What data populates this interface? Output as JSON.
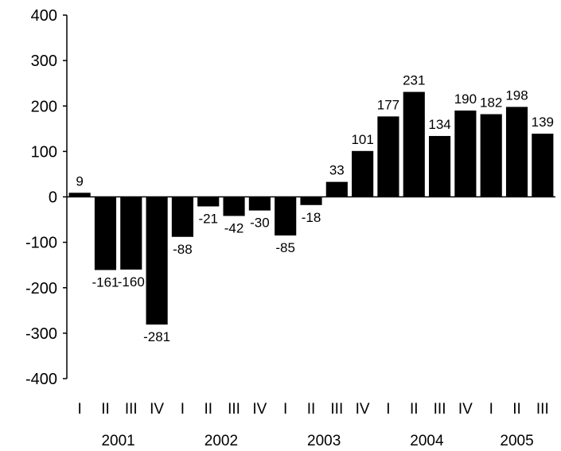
{
  "chart_data": {
    "type": "bar",
    "categories": [
      "I",
      "II",
      "III",
      "IV",
      "I",
      "II",
      "III",
      "IV",
      "I",
      "II",
      "III",
      "IV",
      "I",
      "II",
      "III",
      "IV",
      "I",
      "II",
      "III"
    ],
    "values": [
      9,
      -161,
      -160,
      -281,
      -88,
      -21,
      -42,
      -30,
      -85,
      -18,
      33,
      101,
      177,
      231,
      134,
      190,
      182,
      198,
      139
    ],
    "data_labels": [
      "9",
      "-161",
      "-160",
      "-281",
      "-88",
      "-21",
      "-42",
      "-30",
      "-85",
      "-18",
      "33",
      "101",
      "177",
      "231",
      "134",
      "190",
      "182",
      "198",
      "139"
    ],
    "year_labels": [
      "2001",
      "2002",
      "2003",
      "2004",
      "2005"
    ],
    "year_groups": [
      [
        0,
        3
      ],
      [
        4,
        7
      ],
      [
        8,
        11
      ],
      [
        12,
        15
      ],
      [
        16,
        18
      ]
    ],
    "title": "",
    "xlabel": "",
    "ylabel": "",
    "ylim": [
      -400,
      400
    ],
    "yticks": [
      400,
      300,
      200,
      100,
      0,
      -100,
      -200,
      -300,
      -400
    ],
    "ytick_labels": [
      "400",
      "300",
      "200",
      "100",
      "0",
      "-100",
      "-200",
      "-300",
      "-400"
    ],
    "grid": false,
    "bar_color": "#000000"
  }
}
